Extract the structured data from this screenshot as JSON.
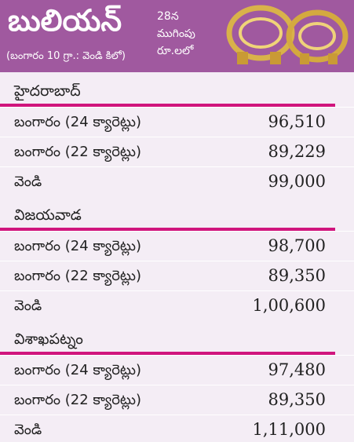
{
  "header": {
    "title": "బులియన్",
    "subtitle": "(బంగారం 10 గ్రా.: వెండి కిలో)",
    "note": [
      "28న",
      "ముగింపు",
      "రూ.లలో"
    ]
  },
  "sections": [
    {
      "city": "హైదరాబాద్",
      "rows": [
        [
          "బంగారం (24 క్యారెట్లు)",
          "96,510"
        ],
        [
          "బంగారం (22 క్యారెట్లు)",
          "89,229"
        ],
        [
          "వెండి",
          "99,000"
        ]
      ]
    },
    {
      "city": "విజయవాడ",
      "rows": [
        [
          "బంగారం (24 క్యారెట్లు)",
          "98,700"
        ],
        [
          "బంగారం (22 క్యారెట్లు)",
          "89,350"
        ],
        [
          "వెండి",
          "1,00,600"
        ]
      ]
    },
    {
      "city": "విశాఖపట్నం",
      "rows": [
        [
          "బంగారం (24 క్యారెట్లు)",
          "97,480"
        ],
        [
          "బంగారం (22 క్యారెట్లు)",
          "89,350"
        ],
        [
          "వెండి",
          "1,11,000"
        ]
      ]
    }
  ]
}
